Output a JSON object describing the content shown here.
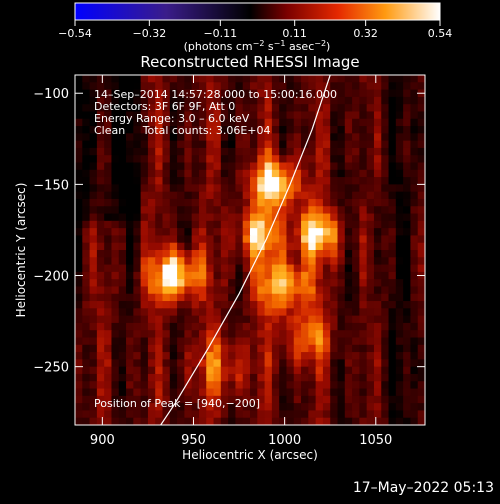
{
  "chart_data": {
    "type": "heatmap",
    "title": "Reconstructed RHESSI Image",
    "xlabel": "Heliocentric X (arcsec)",
    "ylabel": "Heliocentric Y (arcsec)",
    "xlim": [
      885,
      1077
    ],
    "ylim": [
      -282,
      -90
    ],
    "x_ticks": [
      {
        "value": 900,
        "label": "900"
      },
      {
        "value": 950,
        "label": "950"
      },
      {
        "value": 1000,
        "label": "1000"
      },
      {
        "value": 1050,
        "label": "1050"
      }
    ],
    "y_ticks": [
      {
        "value": -100,
        "label": "−100"
      },
      {
        "value": -150,
        "label": "−150"
      },
      {
        "value": -200,
        "label": "−200"
      },
      {
        "value": -250,
        "label": "−250"
      }
    ],
    "colorbar": {
      "colormap": "hot",
      "range": [
        -0.54,
        0.54
      ],
      "tick_labels": [
        "−0.54",
        "−0.32",
        "−0.11",
        "0.11",
        "0.32",
        "0.54"
      ],
      "unit_parts": [
        "(photons cm",
        "−2",
        " s",
        "−1",
        " asec",
        "−2",
        ")"
      ]
    },
    "annotations": [
      "14–Sep–2014 14:57:28.000 to 15:00:16.000",
      "Detectors: 3F 6F 9F, Att 0",
      "Energy Range: 3.0 – 6.0 keV",
      "Clean     Total counts: 3.06E+04"
    ],
    "peak_label": "Position of Peak = [940,−200]",
    "peak": {
      "x": 940,
      "y": -200
    },
    "sources": [
      {
        "x": 940,
        "y": -200,
        "amp": 0.55,
        "sigma": 10
      },
      {
        "x": 995,
        "y": -150,
        "amp": 0.52,
        "sigma": 10
      },
      {
        "x": 1018,
        "y": -177,
        "amp": 0.48,
        "sigma": 9
      },
      {
        "x": 1000,
        "y": -205,
        "amp": 0.44,
        "sigma": 11
      },
      {
        "x": 985,
        "y": -178,
        "amp": 0.4,
        "sigma": 9
      },
      {
        "x": 1012,
        "y": -235,
        "amp": 0.3,
        "sigma": 10
      },
      {
        "x": 965,
        "y": -250,
        "amp": 0.25,
        "sigma": 12
      }
    ],
    "limb_curve": [
      {
        "x": 1025,
        "y": -90
      },
      {
        "x": 1015,
        "y": -120
      },
      {
        "x": 1003,
        "y": -150
      },
      {
        "x": 990,
        "y": -180
      },
      {
        "x": 975,
        "y": -210
      },
      {
        "x": 958,
        "y": -240
      },
      {
        "x": 940,
        "y": -270
      },
      {
        "x": 932,
        "y": -282
      }
    ]
  },
  "footer": {
    "date_stamp": "17–May–2022 05:13"
  }
}
